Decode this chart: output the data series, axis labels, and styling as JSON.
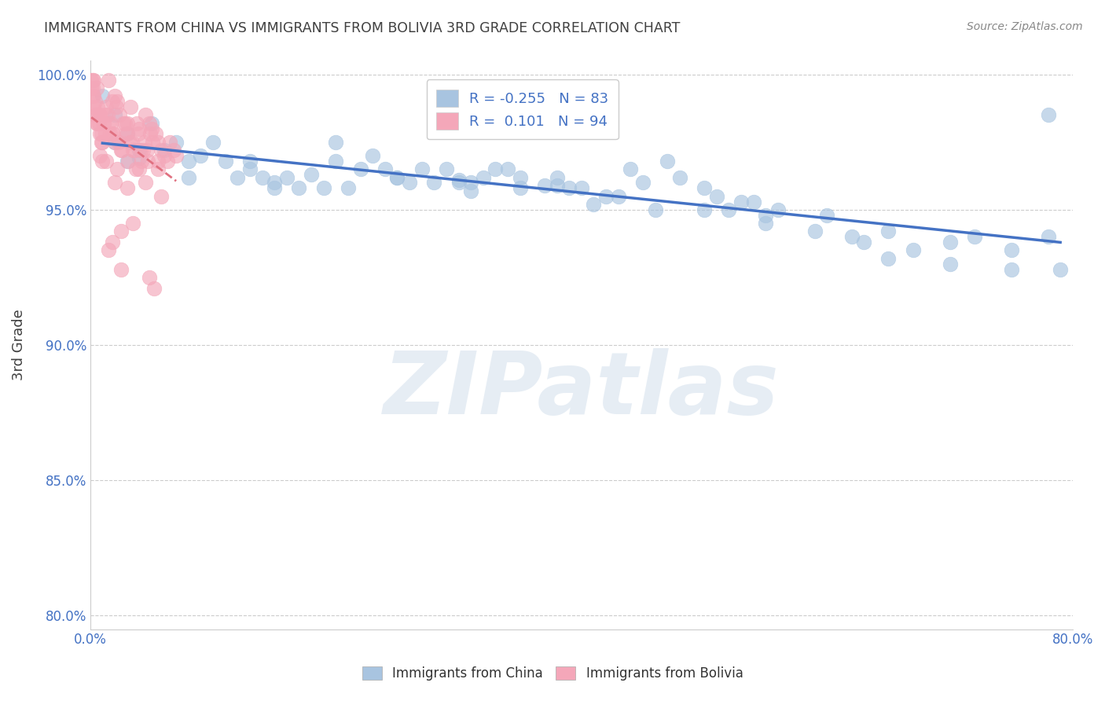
{
  "title": "IMMIGRANTS FROM CHINA VS IMMIGRANTS FROM BOLIVIA 3RD GRADE CORRELATION CHART",
  "source": "Source: ZipAtlas.com",
  "ylabel": "3rd Grade",
  "xlim": [
    0.0,
    0.8
  ],
  "ylim": [
    0.795,
    1.005
  ],
  "yticks": [
    0.8,
    0.85,
    0.9,
    0.95,
    1.0
  ],
  "ytick_labels": [
    "80.0%",
    "85.0%",
    "90.0%",
    "95.0%",
    "100.0%"
  ],
  "xticks": [
    0.0,
    0.1,
    0.2,
    0.3,
    0.4,
    0.5,
    0.6,
    0.7,
    0.8
  ],
  "china_R": -0.255,
  "china_N": 83,
  "bolivia_R": 0.101,
  "bolivia_N": 94,
  "china_color": "#a8c4e0",
  "bolivia_color": "#f4a7b9",
  "china_line_color": "#4472c4",
  "bolivia_line_color": "#e07080",
  "legend_china_label": "Immigrants from China",
  "legend_bolivia_label": "Immigrants from Bolivia",
  "watermark": "ZIPatlas",
  "background_color": "#ffffff",
  "grid_color": "#cccccc",
  "title_color": "#404040",
  "axis_label_color": "#404040",
  "tick_label_color": "#4472c4",
  "china_scatter_x": [
    0.01,
    0.02,
    0.02,
    0.03,
    0.03,
    0.04,
    0.04,
    0.05,
    0.06,
    0.07,
    0.08,
    0.08,
    0.09,
    0.1,
    0.11,
    0.12,
    0.13,
    0.13,
    0.14,
    0.15,
    0.16,
    0.17,
    0.18,
    0.19,
    0.2,
    0.21,
    0.22,
    0.23,
    0.24,
    0.25,
    0.26,
    0.27,
    0.28,
    0.29,
    0.3,
    0.31,
    0.31,
    0.32,
    0.33,
    0.34,
    0.35,
    0.35,
    0.37,
    0.38,
    0.39,
    0.4,
    0.41,
    0.42,
    0.43,
    0.44,
    0.46,
    0.47,
    0.48,
    0.5,
    0.51,
    0.52,
    0.53,
    0.54,
    0.55,
    0.56,
    0.59,
    0.6,
    0.63,
    0.65,
    0.67,
    0.7,
    0.72,
    0.75,
    0.78,
    0.55,
    0.62,
    0.45,
    0.38,
    0.3,
    0.25,
    0.2,
    0.15,
    0.5,
    0.65,
    0.7,
    0.75,
    0.78,
    0.79
  ],
  "china_scatter_y": [
    0.992,
    0.985,
    0.975,
    0.978,
    0.968,
    0.972,
    0.969,
    0.982,
    0.972,
    0.975,
    0.968,
    0.962,
    0.97,
    0.975,
    0.968,
    0.962,
    0.968,
    0.965,
    0.962,
    0.96,
    0.962,
    0.958,
    0.963,
    0.958,
    0.975,
    0.958,
    0.965,
    0.97,
    0.965,
    0.962,
    0.96,
    0.965,
    0.96,
    0.965,
    0.961,
    0.957,
    0.96,
    0.962,
    0.965,
    0.965,
    0.962,
    0.958,
    0.959,
    0.959,
    0.958,
    0.958,
    0.952,
    0.955,
    0.955,
    0.965,
    0.95,
    0.968,
    0.962,
    0.958,
    0.955,
    0.95,
    0.953,
    0.953,
    0.948,
    0.95,
    0.942,
    0.948,
    0.938,
    0.942,
    0.935,
    0.938,
    0.94,
    0.935,
    0.985,
    0.945,
    0.94,
    0.96,
    0.962,
    0.96,
    0.962,
    0.968,
    0.958,
    0.95,
    0.932,
    0.93,
    0.928,
    0.94,
    0.928
  ],
  "bolivia_scatter_x": [
    0.001,
    0.001,
    0.002,
    0.002,
    0.002,
    0.003,
    0.003,
    0.003,
    0.004,
    0.004,
    0.005,
    0.005,
    0.005,
    0.006,
    0.006,
    0.007,
    0.007,
    0.008,
    0.008,
    0.008,
    0.009,
    0.009,
    0.01,
    0.01,
    0.011,
    0.012,
    0.012,
    0.013,
    0.013,
    0.014,
    0.015,
    0.015,
    0.016,
    0.017,
    0.018,
    0.018,
    0.019,
    0.02,
    0.02,
    0.021,
    0.022,
    0.023,
    0.024,
    0.025,
    0.025,
    0.026,
    0.027,
    0.028,
    0.029,
    0.03,
    0.03,
    0.031,
    0.032,
    0.033,
    0.034,
    0.035,
    0.036,
    0.037,
    0.038,
    0.039,
    0.04,
    0.041,
    0.042,
    0.043,
    0.044,
    0.045,
    0.046,
    0.047,
    0.048,
    0.049,
    0.05,
    0.051,
    0.053,
    0.055,
    0.055,
    0.058,
    0.06,
    0.063,
    0.065,
    0.068,
    0.07,
    0.02,
    0.03,
    0.035,
    0.025,
    0.022,
    0.018,
    0.015,
    0.04,
    0.045,
    0.048,
    0.052,
    0.055,
    0.058
  ],
  "bolivia_scatter_y": [
    0.998,
    0.995,
    0.995,
    0.992,
    0.998,
    0.992,
    0.988,
    0.998,
    0.99,
    0.985,
    0.995,
    0.985,
    0.982,
    0.988,
    0.982,
    0.982,
    0.985,
    0.985,
    0.978,
    0.97,
    0.978,
    0.975,
    0.975,
    0.968,
    0.982,
    0.985,
    0.978,
    0.988,
    0.968,
    0.985,
    0.998,
    0.982,
    0.978,
    0.982,
    0.99,
    0.978,
    0.978,
    0.992,
    0.975,
    0.988,
    0.99,
    0.975,
    0.985,
    0.928,
    0.972,
    0.972,
    0.982,
    0.982,
    0.978,
    0.982,
    0.978,
    0.968,
    0.975,
    0.988,
    0.975,
    0.972,
    0.972,
    0.965,
    0.982,
    0.978,
    0.98,
    0.972,
    0.968,
    0.972,
    0.975,
    0.985,
    0.972,
    0.968,
    0.982,
    0.978,
    0.98,
    0.975,
    0.978,
    0.975,
    0.965,
    0.972,
    0.97,
    0.968,
    0.975,
    0.972,
    0.97,
    0.96,
    0.958,
    0.945,
    0.942,
    0.965,
    0.938,
    0.935,
    0.965,
    0.96,
    0.925,
    0.921,
    0.968,
    0.955
  ]
}
